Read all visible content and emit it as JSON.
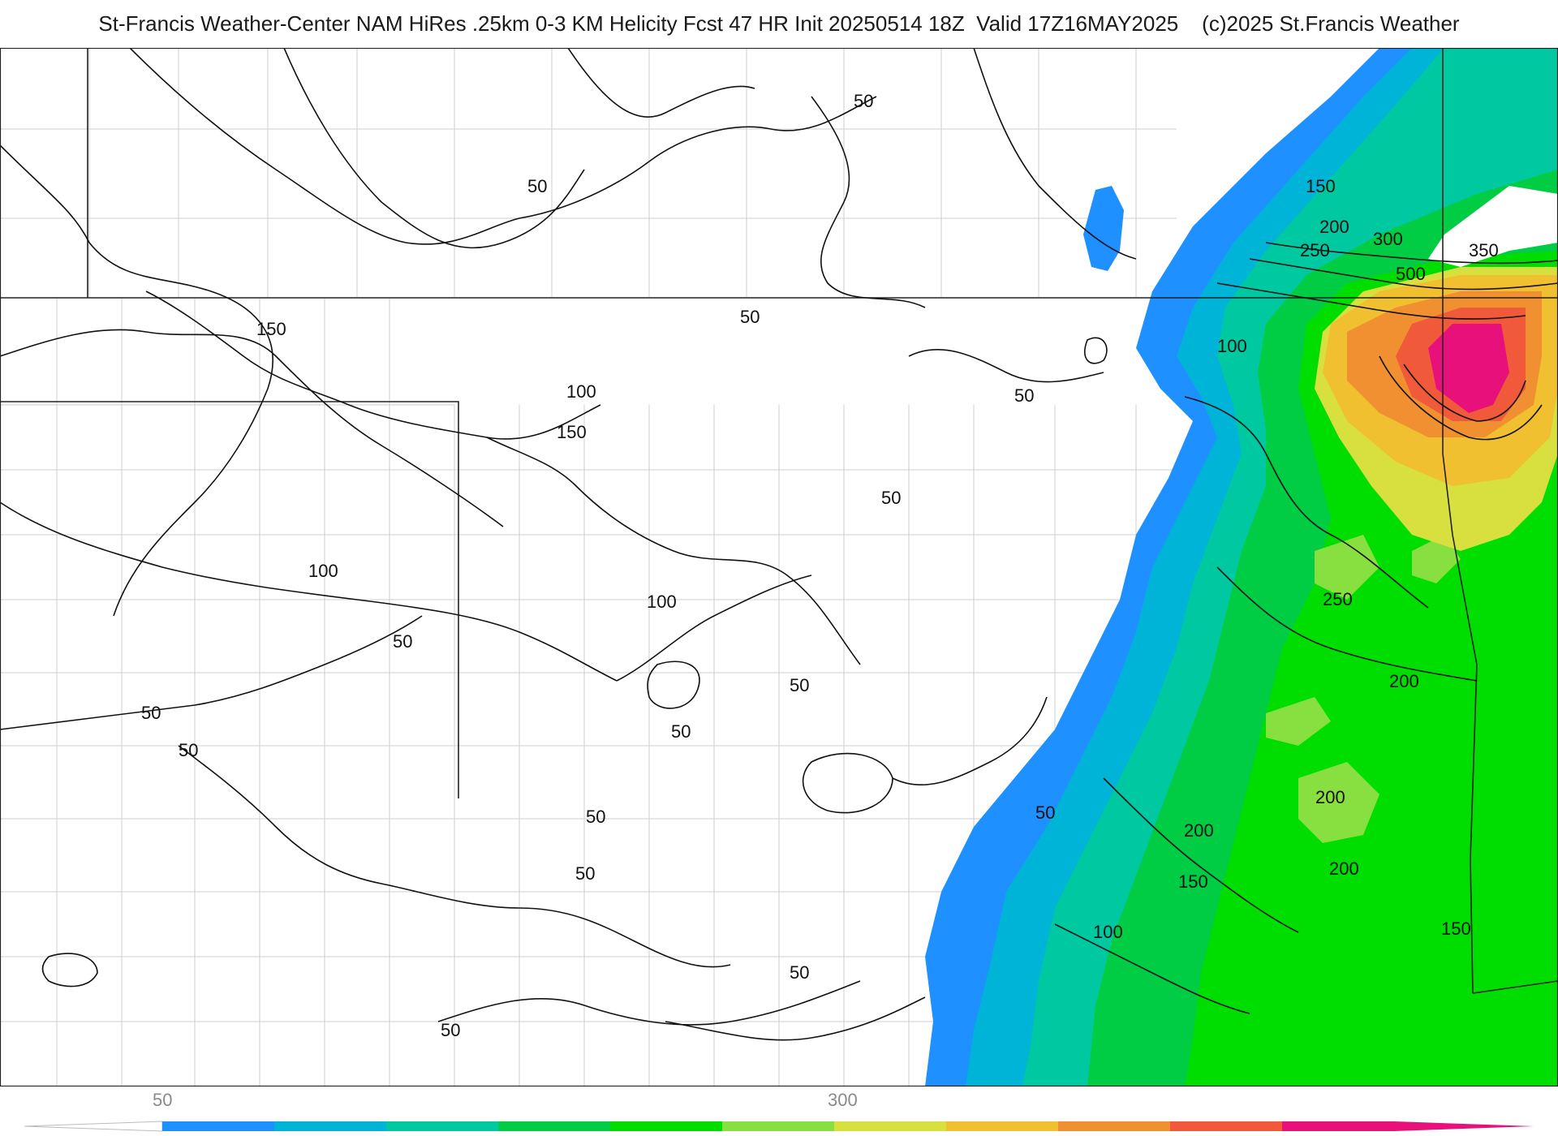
{
  "header": {
    "title": "St-Francis Weather-Center NAM HiRes .25km 0-3 KM Helicity Fcst 47 HR Init 20250514 18Z  Valid 17Z16MAY2025    (c)2025 St.Francis Weather"
  },
  "contour_labels": [
    "50",
    "50",
    "150",
    "50",
    "100",
    "150",
    "50",
    "50",
    "100",
    "50",
    "100",
    "50",
    "50",
    "50",
    "50",
    "50",
    "50",
    "50",
    "50",
    "150",
    "200",
    "300",
    "250",
    "350",
    "500",
    "100",
    "250",
    "200",
    "200",
    "200",
    "200",
    "150",
    "100",
    "150",
    "50"
  ],
  "colorbar": {
    "tick_labels": [
      "50",
      "300"
    ],
    "colors": [
      "#ffffff",
      "#1e90ff",
      "#00b4d8",
      "#00c8a0",
      "#00cc44",
      "#00dd00",
      "#88e040",
      "#d8e040",
      "#f0c030",
      "#f09030",
      "#f05a3a",
      "#e8107a"
    ]
  },
  "colors": {
    "contour": "#111111",
    "state_border": "#222222",
    "county_border": "#c8c8c8"
  }
}
